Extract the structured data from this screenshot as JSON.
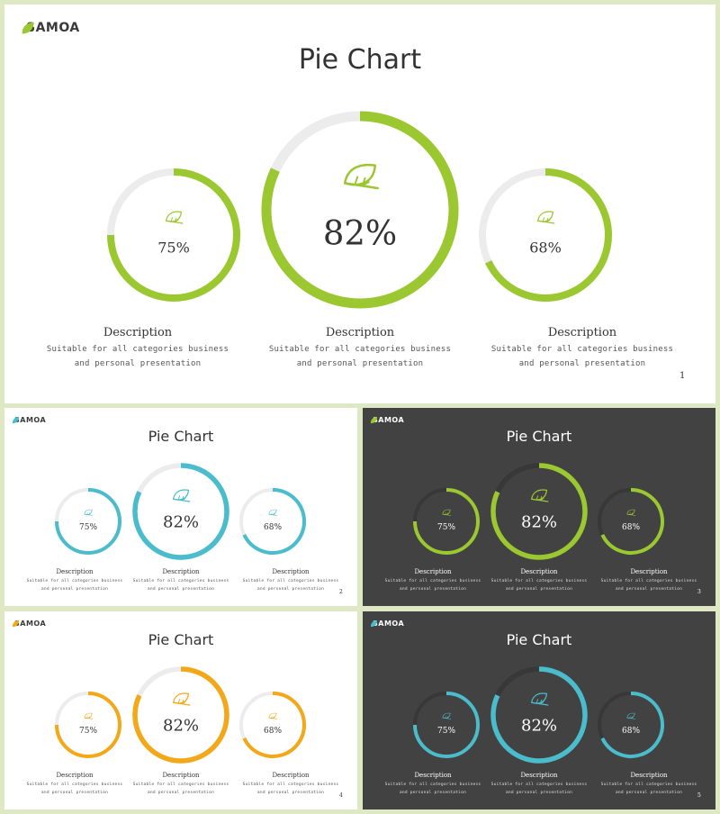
{
  "brand": "SAMOA",
  "slides": [
    {
      "title": "Pie Chart",
      "page": "1",
      "theme": "light",
      "accent": "#9bc830",
      "track": "#ececec",
      "items": [
        {
          "value": 75,
          "label": "75%",
          "desc_title": "Description",
          "desc_line1": "Suitable for all categories business",
          "desc_line2": "and personal presentation"
        },
        {
          "value": 82,
          "label": "82%",
          "desc_title": "Description",
          "desc_line1": "Suitable for all categories business",
          "desc_line2": "and personal presentation"
        },
        {
          "value": 68,
          "label": "68%",
          "desc_title": "Description",
          "desc_line1": "Suitable for all categories business",
          "desc_line2": "and personal presentation"
        }
      ]
    },
    {
      "title": "Pie Chart",
      "page": "2",
      "theme": "light",
      "accent": "#4bbccc",
      "track": "#ececec",
      "items": [
        {
          "value": 75,
          "label": "75%",
          "desc_title": "Description",
          "desc_line1": "Suitable for all categories business",
          "desc_line2": "and personal presentation"
        },
        {
          "value": 82,
          "label": "82%",
          "desc_title": "Description",
          "desc_line1": "Suitable for all categories business",
          "desc_line2": "and personal presentation"
        },
        {
          "value": 68,
          "label": "68%",
          "desc_title": "Description",
          "desc_line1": "Suitable for all categories business",
          "desc_line2": "and personal presentation"
        }
      ]
    },
    {
      "title": "Pie Chart",
      "page": "3",
      "theme": "dark",
      "accent": "#9bc830",
      "track": "#383838",
      "items": [
        {
          "value": 75,
          "label": "75%",
          "desc_title": "Description",
          "desc_line1": "Suitable for all categories business",
          "desc_line2": "and personal presentation"
        },
        {
          "value": 82,
          "label": "82%",
          "desc_title": "Description",
          "desc_line1": "Suitable for all categories business",
          "desc_line2": "and personal presentation"
        },
        {
          "value": 68,
          "label": "68%",
          "desc_title": "Description",
          "desc_line1": "Suitable for all categories business",
          "desc_line2": "and personal presentation"
        }
      ]
    },
    {
      "title": "Pie Chart",
      "page": "4",
      "theme": "light",
      "accent": "#f3a81a",
      "track": "#ececec",
      "items": [
        {
          "value": 75,
          "label": "75%",
          "desc_title": "Description",
          "desc_line1": "Suitable for all categories business",
          "desc_line2": "and personal presentation"
        },
        {
          "value": 82,
          "label": "82%",
          "desc_title": "Description",
          "desc_line1": "Suitable for all categories business",
          "desc_line2": "and personal presentation"
        },
        {
          "value": 68,
          "label": "68%",
          "desc_title": "Description",
          "desc_line1": "Suitable for all categories business",
          "desc_line2": "and personal presentation"
        }
      ]
    },
    {
      "title": "Pie Chart",
      "page": "5",
      "theme": "dark",
      "accent": "#4bbccc",
      "track": "#383838",
      "items": [
        {
          "value": 75,
          "label": "75%",
          "desc_title": "Description",
          "desc_line1": "Suitable for all categories business",
          "desc_line2": "and personal presentation"
        },
        {
          "value": 82,
          "label": "82%",
          "desc_title": "Description",
          "desc_line1": "Suitable for all categories business",
          "desc_line2": "and personal presentation"
        },
        {
          "value": 68,
          "label": "68%",
          "desc_title": "Description",
          "desc_line1": "Suitable for all categories business",
          "desc_line2": "and personal presentation"
        }
      ]
    }
  ],
  "chart_data": [
    {
      "type": "pie",
      "title": "Pie Chart",
      "values": [
        75,
        82,
        68
      ],
      "categories": [
        "Description",
        "Description",
        "Description"
      ]
    },
    {
      "type": "pie",
      "title": "Pie Chart",
      "values": [
        75,
        82,
        68
      ],
      "categories": [
        "Description",
        "Description",
        "Description"
      ]
    },
    {
      "type": "pie",
      "title": "Pie Chart",
      "values": [
        75,
        82,
        68
      ],
      "categories": [
        "Description",
        "Description",
        "Description"
      ]
    },
    {
      "type": "pie",
      "title": "Pie Chart",
      "values": [
        75,
        82,
        68
      ],
      "categories": [
        "Description",
        "Description",
        "Description"
      ]
    },
    {
      "type": "pie",
      "title": "Pie Chart",
      "values": [
        75,
        82,
        68
      ],
      "categories": [
        "Description",
        "Description",
        "Description"
      ]
    }
  ]
}
